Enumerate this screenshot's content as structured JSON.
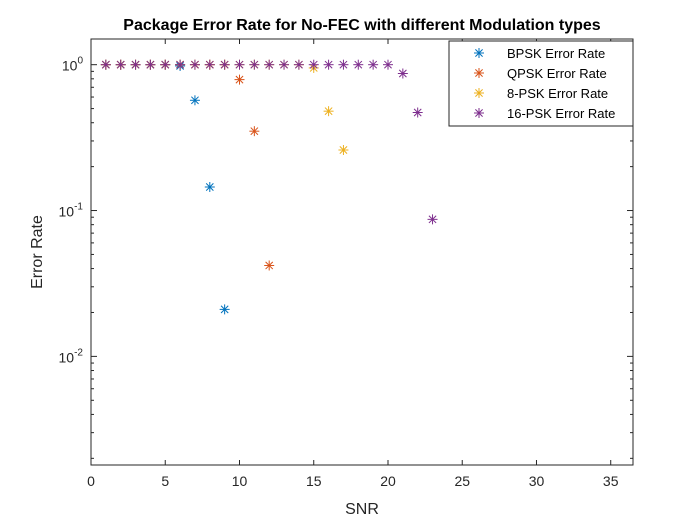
{
  "chart_data": {
    "type": "scatter",
    "title": "Package Error Rate for No-FEC with different Modulation types",
    "xlabel": "SNR",
    "ylabel": "Error Rate",
    "xlim": [
      0,
      36.5
    ],
    "ylim": [
      0.0018,
      1.5
    ],
    "yscale": "log",
    "xticks": [
      0,
      5,
      10,
      15,
      20,
      25,
      30,
      35
    ],
    "yticks": [
      {
        "value": 1,
        "base": "10",
        "exp": "0"
      },
      {
        "value": 0.1,
        "base": "10",
        "exp": "-1"
      },
      {
        "value": 0.01,
        "base": "10",
        "exp": "-2"
      }
    ],
    "grid": false,
    "legend_position": "top-right",
    "marker": "asterisk",
    "series": [
      {
        "name": "BPSK Error Rate",
        "color": "#0072BD",
        "x": [
          1,
          2,
          3,
          4,
          5,
          6,
          7,
          8,
          9
        ],
        "y": [
          1,
          1,
          1,
          1,
          1,
          0.98,
          0.57,
          0.145,
          0.021
        ]
      },
      {
        "name": "QPSK Error Rate",
        "color": "#D95319",
        "x": [
          1,
          2,
          3,
          4,
          5,
          6,
          7,
          8,
          9,
          10,
          11,
          12
        ],
        "y": [
          1,
          1,
          1,
          1,
          1,
          1,
          1,
          1,
          1,
          0.79,
          0.35,
          0.042
        ]
      },
      {
        "name": "8-PSK Error Rate",
        "color": "#EDB120",
        "x": [
          1,
          2,
          3,
          4,
          5,
          6,
          7,
          8,
          9,
          10,
          11,
          12,
          13,
          14,
          15,
          16,
          17
        ],
        "y": [
          1,
          1,
          1,
          1,
          1,
          1,
          1,
          1,
          1,
          1,
          1,
          1,
          1,
          1,
          0.95,
          0.48,
          0.26
        ]
      },
      {
        "name": "16-PSK Error Rate",
        "color": "#7E2F8E",
        "x": [
          1,
          2,
          3,
          4,
          5,
          6,
          7,
          8,
          9,
          10,
          11,
          12,
          13,
          14,
          15,
          16,
          17,
          18,
          19,
          20,
          21,
          22,
          23
        ],
        "y": [
          1,
          1,
          1,
          1,
          1,
          1,
          1,
          1,
          1,
          1,
          1,
          1,
          1,
          1,
          1,
          1,
          1,
          1,
          1,
          1,
          0.87,
          0.47,
          0.087
        ]
      }
    ]
  }
}
